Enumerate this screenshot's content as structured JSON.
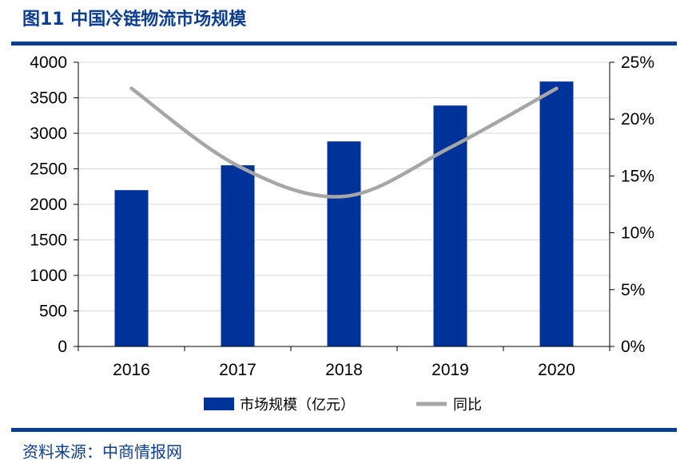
{
  "title": "图11  中国冷链物流市场规模",
  "source": "资料来源：中商情报网",
  "colors": {
    "bar": "#003399",
    "line": "#A6A6A6",
    "accent": "#0B3D91",
    "axis": "#000000"
  },
  "chart_data": {
    "type": "bar",
    "title": "图11  中国冷链物流市场规模",
    "categories": [
      "2016",
      "2017",
      "2018",
      "2019",
      "2020"
    ],
    "series": [
      {
        "name": "市场规模（亿元）",
        "type": "bar",
        "axis": "left",
        "values": [
          2200,
          2550,
          2886,
          3391,
          3729
        ]
      },
      {
        "name": "同比",
        "type": "line",
        "axis": "right",
        "values": [
          22.7,
          15.9,
          13.2,
          17.5,
          22.7
        ]
      }
    ],
    "y_left": {
      "min": 0,
      "max": 4000,
      "ticks": [
        "0",
        "500",
        "1000",
        "1500",
        "2000",
        "2500",
        "3000",
        "3500",
        "4000"
      ]
    },
    "y_right": {
      "min": 0,
      "max": 25,
      "ticks": [
        "0%",
        "5%",
        "10%",
        "15%",
        "20%",
        "25%"
      ]
    },
    "legend": [
      "市场规模（亿元）",
      "同比"
    ],
    "legend_position": "bottom",
    "grid": true
  }
}
